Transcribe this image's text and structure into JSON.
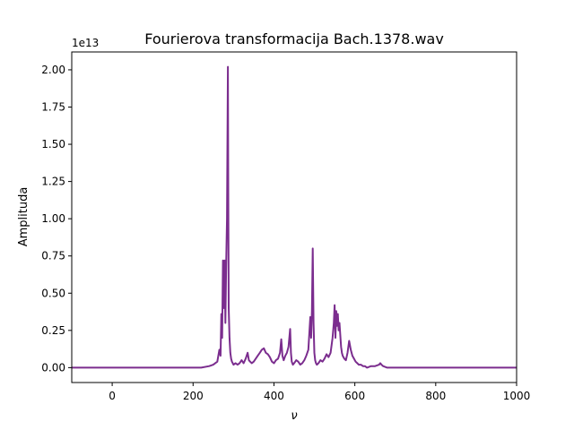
{
  "chart_data": {
    "type": "line",
    "title": "Fourierova transformacija Bach.1378.wav",
    "xlabel": "ν",
    "ylabel": "Amplituda",
    "y_offset_label": "1e13",
    "xlim": [
      -100,
      1000
    ],
    "ylim": [
      -0.1,
      2.12
    ],
    "y_scale_factor": 10000000000000.0,
    "xticks": [
      0,
      200,
      400,
      600,
      800,
      1000
    ],
    "xtick_labels": [
      "0",
      "200",
      "400",
      "600",
      "800",
      "1000"
    ],
    "yticks": [
      0.0,
      0.25,
      0.5,
      0.75,
      1.0,
      1.25,
      1.5,
      1.75,
      2.0
    ],
    "ytick_labels": [
      "0.00",
      "0.25",
      "0.50",
      "0.75",
      "1.00",
      "1.25",
      "1.50",
      "1.75",
      "2.00"
    ],
    "grid": false,
    "legend": "none",
    "series": [
      {
        "color": "#7b2d8e",
        "x": [
          -100,
          220,
          240,
          250,
          260,
          265,
          268,
          270,
          272,
          274,
          276,
          278,
          280,
          282,
          284,
          286,
          287,
          288,
          290,
          292,
          294,
          296,
          300,
          305,
          310,
          315,
          320,
          325,
          330,
          335,
          338,
          341,
          345,
          350,
          360,
          365,
          370,
          375,
          380,
          385,
          390,
          395,
          400,
          405,
          410,
          415,
          418,
          421,
          424,
          428,
          432,
          436,
          440,
          442,
          444,
          447,
          450,
          455,
          460,
          465,
          470,
          475,
          480,
          485,
          490,
          492,
          494,
          496,
          498,
          500,
          502,
          504,
          506,
          510,
          515,
          520,
          525,
          530,
          535,
          540,
          545,
          548,
          550,
          552,
          554,
          556,
          558,
          560,
          562,
          564,
          566,
          568,
          570,
          574,
          578,
          582,
          586,
          590,
          594,
          598,
          602,
          606,
          610,
          615,
          620,
          625,
          630,
          640,
          650,
          660,
          663,
          666,
          670,
          680,
          700,
          1000
        ],
        "y": [
          0.0,
          0.0,
          0.01,
          0.02,
          0.04,
          0.12,
          0.08,
          0.36,
          0.2,
          0.72,
          0.4,
          0.72,
          0.3,
          0.7,
          1.0,
          2.02,
          1.2,
          0.4,
          0.2,
          0.1,
          0.06,
          0.04,
          0.02,
          0.03,
          0.02,
          0.03,
          0.05,
          0.03,
          0.06,
          0.1,
          0.05,
          0.04,
          0.03,
          0.04,
          0.08,
          0.1,
          0.12,
          0.13,
          0.1,
          0.09,
          0.07,
          0.04,
          0.03,
          0.05,
          0.06,
          0.1,
          0.19,
          0.08,
          0.05,
          0.08,
          0.1,
          0.14,
          0.26,
          0.1,
          0.04,
          0.02,
          0.03,
          0.05,
          0.04,
          0.02,
          0.03,
          0.05,
          0.08,
          0.12,
          0.34,
          0.2,
          0.38,
          0.8,
          0.3,
          0.1,
          0.05,
          0.03,
          0.02,
          0.03,
          0.05,
          0.04,
          0.06,
          0.09,
          0.07,
          0.1,
          0.2,
          0.3,
          0.42,
          0.2,
          0.38,
          0.28,
          0.36,
          0.25,
          0.3,
          0.22,
          0.14,
          0.1,
          0.08,
          0.06,
          0.05,
          0.1,
          0.18,
          0.12,
          0.08,
          0.06,
          0.04,
          0.03,
          0.02,
          0.02,
          0.01,
          0.01,
          0.0,
          0.01,
          0.01,
          0.02,
          0.03,
          0.02,
          0.01,
          0.0,
          0.0,
          0.0
        ]
      }
    ]
  }
}
